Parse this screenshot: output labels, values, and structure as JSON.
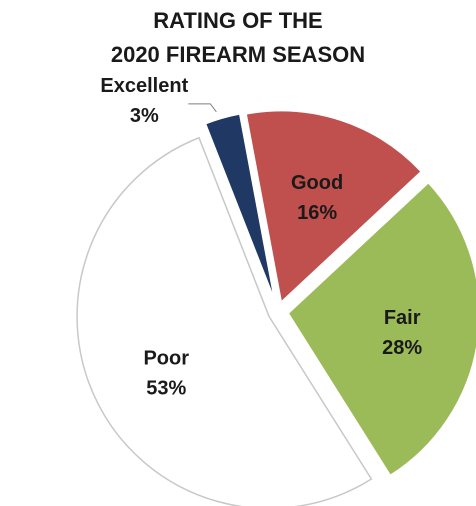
{
  "chart_data": {
    "type": "pie",
    "title": [
      "RATING OF THE",
      "2020 FIREARM SEASON"
    ],
    "start_angle_deg": -43,
    "slices": [
      {
        "label": "Fair",
        "pct_label": "28%",
        "value": 28,
        "color": "#9bbb59",
        "text_color": "#1a1a1a"
      },
      {
        "label": "Poor",
        "pct_label": "53%",
        "value": 53,
        "color": "#ffffff",
        "text_color": "#1a1a1a"
      },
      {
        "label": "Excellent",
        "pct_label": "3%",
        "value": 3,
        "color": "#1f3864",
        "text_color": "#1a1a1a"
      },
      {
        "label": "Good",
        "pct_label": "16%",
        "value": 16,
        "color": "#c0504d",
        "text_color": "#1a1a1a"
      }
    ],
    "legend": "none"
  }
}
